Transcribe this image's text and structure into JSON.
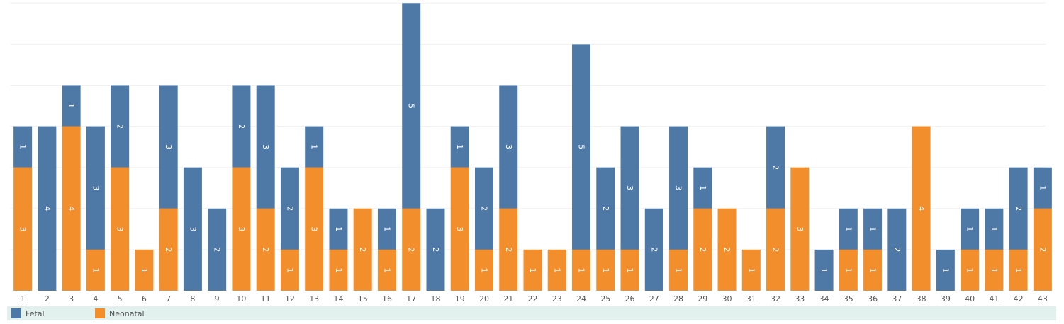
{
  "chart_data": {
    "type": "bar",
    "stacked": true,
    "categories": [
      "1",
      "2",
      "3",
      "4",
      "5",
      "6",
      "7",
      "8",
      "9",
      "10",
      "11",
      "12",
      "13",
      "14",
      "15",
      "16",
      "17",
      "18",
      "19",
      "20",
      "21",
      "22",
      "23",
      "24",
      "25",
      "26",
      "27",
      "28",
      "29",
      "30",
      "31",
      "32",
      "33",
      "34",
      "35",
      "36",
      "37",
      "38",
      "39",
      "40",
      "41",
      "42",
      "43"
    ],
    "series": [
      {
        "name": "Neonatal",
        "color": "#f28e2b",
        "values": [
          3,
          0,
          4,
          1,
          3,
          1,
          2,
          0,
          0,
          3,
          2,
          1,
          3,
          1,
          2,
          1,
          2,
          0,
          3,
          1,
          2,
          1,
          1,
          1,
          1,
          1,
          0,
          1,
          2,
          2,
          1,
          2,
          3,
          0,
          1,
          1,
          0,
          4,
          0,
          1,
          1,
          1,
          2
        ]
      },
      {
        "name": "Fetal",
        "color": "#4e79a7",
        "values": [
          1,
          4,
          1,
          3,
          2,
          0,
          3,
          3,
          2,
          2,
          3,
          2,
          1,
          1,
          0,
          1,
          5,
          2,
          1,
          2,
          3,
          0,
          0,
          5,
          2,
          3,
          2,
          3,
          1,
          0,
          0,
          2,
          0,
          1,
          1,
          1,
          2,
          0,
          1,
          1,
          1,
          2,
          1
        ]
      }
    ],
    "ylim": [
      0,
      7
    ],
    "grid": true,
    "legend_position": "bottom",
    "xlabel": "",
    "ylabel": ""
  },
  "legend": {
    "items": [
      {
        "label": "Fetal",
        "color": "#4e79a7"
      },
      {
        "label": "Neonatal",
        "color": "#f28e2b"
      }
    ]
  }
}
